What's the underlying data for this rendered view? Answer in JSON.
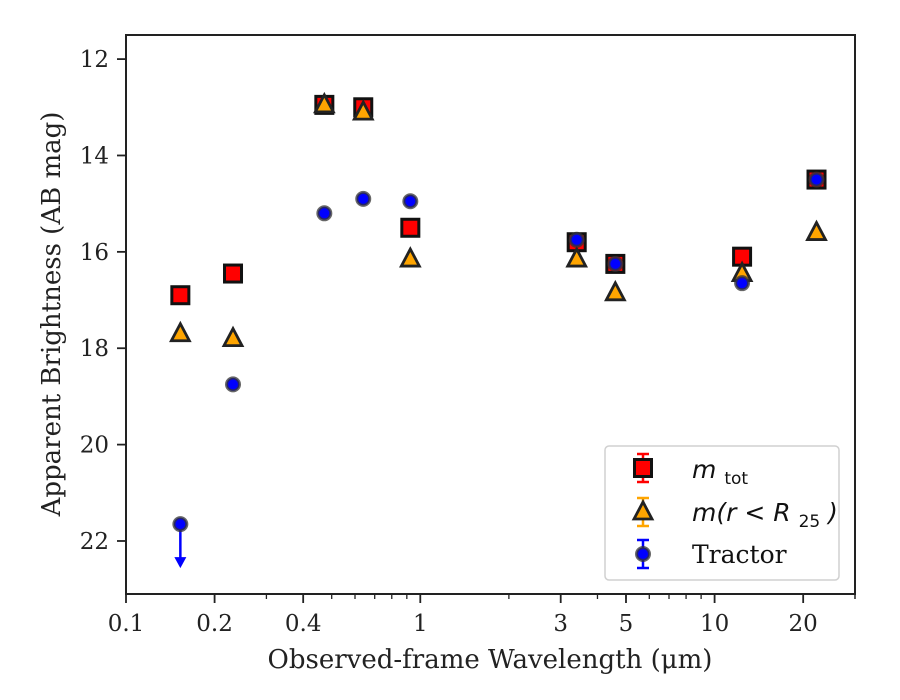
{
  "chart_data": {
    "type": "scatter",
    "xlabel": "Observed-frame Wavelength (μm)",
    "ylabel": "Apparent Brightness (AB mag)",
    "x_scale": "log",
    "xlim": [
      0.1,
      30
    ],
    "ylim": [
      23.1,
      11.5
    ],
    "y_inverted": true,
    "x_ticks": [
      {
        "value": 0.1,
        "label": "0.1"
      },
      {
        "value": 0.2,
        "label": "0.2"
      },
      {
        "value": 0.4,
        "label": "0.4"
      },
      {
        "value": 1,
        "label": "1"
      },
      {
        "value": 3,
        "label": "3"
      },
      {
        "value": 5,
        "label": "5"
      },
      {
        "value": 10,
        "label": "10"
      },
      {
        "value": 20,
        "label": "20"
      }
    ],
    "y_ticks": [
      {
        "value": 12,
        "label": "12"
      },
      {
        "value": 14,
        "label": "14"
      },
      {
        "value": 16,
        "label": "16"
      },
      {
        "value": 18,
        "label": "18"
      },
      {
        "value": 20,
        "label": "20"
      },
      {
        "value": 22,
        "label": "22"
      }
    ],
    "grid": false,
    "legend_position": "bottom-right",
    "legend": [
      {
        "label_main": "m",
        "label_sub": "tot",
        "label_tail": "",
        "marker": "square",
        "color": "#ff0000"
      },
      {
        "label_main": "m(r < R",
        "label_sub": "25",
        "label_tail": ")",
        "marker": "triangle",
        "color": "#ffa500"
      },
      {
        "label_main": "Tractor",
        "label_sub": "",
        "label_tail": "",
        "marker": "circle",
        "color": "#0000ff"
      }
    ],
    "series": [
      {
        "name": "m_tot",
        "marker": "square",
        "color": "#ff0000",
        "x": [
          0.153,
          0.231,
          0.472,
          0.64,
          0.925,
          3.4,
          4.6,
          12.4,
          22.2
        ],
        "y": [
          16.9,
          16.45,
          12.95,
          13.0,
          15.5,
          15.8,
          16.25,
          16.1,
          14.5
        ]
      },
      {
        "name": "m(r<R25)",
        "marker": "triangle",
        "color": "#ffa500",
        "x": [
          0.153,
          0.231,
          0.472,
          0.64,
          0.925,
          3.4,
          4.6,
          12.4,
          22.2
        ],
        "y": [
          17.7,
          17.8,
          12.95,
          13.1,
          16.15,
          16.15,
          16.85,
          16.45,
          15.6
        ]
      },
      {
        "name": "Tractor",
        "marker": "circle",
        "color": "#0000ff",
        "x": [
          0.153,
          0.231,
          0.472,
          0.64,
          0.925,
          3.4,
          4.6,
          12.4,
          22.2
        ],
        "y": [
          21.65,
          18.75,
          15.2,
          14.9,
          14.95,
          15.75,
          16.25,
          16.65,
          14.5
        ],
        "upper_limit": [
          true,
          false,
          false,
          false,
          false,
          false,
          false,
          false,
          false
        ]
      }
    ]
  }
}
